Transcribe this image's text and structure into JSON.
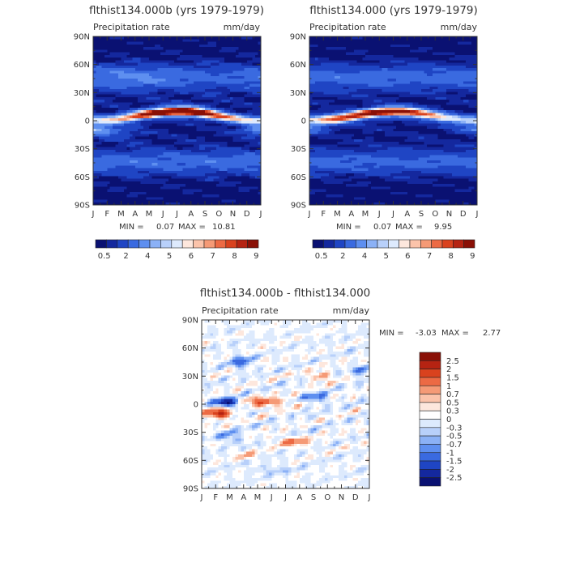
{
  "chart_data": [
    {
      "type": "heatmap",
      "title": "flthist134.000b (yrs 1979-1979)",
      "subtitle_left": "Precipitation rate",
      "subtitle_right": "mm/day",
      "x_ticks": [
        "J",
        "F",
        "M",
        "A",
        "M",
        "J",
        "J",
        "A",
        "S",
        "O",
        "N",
        "D",
        "J"
      ],
      "y_ticks": [
        "90N",
        "60N",
        "30N",
        "0",
        "30S",
        "60S",
        "90S"
      ],
      "y_tick_values": [
        90,
        60,
        30,
        0,
        -30,
        -60,
        -90
      ],
      "min_label": "MIN =",
      "min_value": "0.07",
      "max_label": "MAX =",
      "max_value": "10.81",
      "colorbar_labels": [
        "0.5",
        "2",
        "4",
        "5",
        "6",
        "7",
        "8",
        "9"
      ],
      "colorbar_colors": [
        "#0a1172",
        "#14289e",
        "#1f45c4",
        "#3a6ae0",
        "#5e8ff0",
        "#8bb1f6",
        "#b8d0fa",
        "#ddeafd",
        "#fde7dd",
        "#fbc3aa",
        "#f59a76",
        "#ec6a44",
        "#d9421e",
        "#b52312",
        "#8a1006"
      ],
      "peak_lat": 7,
      "peak_value": 10.8,
      "peak_month": 6
    },
    {
      "type": "heatmap",
      "title": "flthist134.000 (yrs 1979-1979)",
      "subtitle_left": "Precipitation rate",
      "subtitle_right": "mm/day",
      "x_ticks": [
        "J",
        "F",
        "M",
        "A",
        "M",
        "J",
        "J",
        "A",
        "S",
        "O",
        "N",
        "D",
        "J"
      ],
      "y_ticks": [
        "90N",
        "60N",
        "30N",
        "0",
        "30S",
        "60S",
        "90S"
      ],
      "y_tick_values": [
        90,
        60,
        30,
        0,
        -30,
        -60,
        -90
      ],
      "min_label": "MIN =",
      "min_value": "0.07",
      "max_label": "MAX =",
      "max_value": "9.95",
      "colorbar_labels": [
        "0.5",
        "2",
        "4",
        "5",
        "6",
        "7",
        "8",
        "9"
      ],
      "colorbar_colors": [
        "#0a1172",
        "#14289e",
        "#1f45c4",
        "#3a6ae0",
        "#5e8ff0",
        "#8bb1f6",
        "#b8d0fa",
        "#ddeafd",
        "#fde7dd",
        "#fbc3aa",
        "#f59a76",
        "#ec6a44",
        "#d9421e",
        "#b52312",
        "#8a1006"
      ],
      "peak_lat": 7,
      "peak_value": 9.9,
      "peak_month": 6
    },
    {
      "type": "heatmap",
      "title": "flthist134.000b - flthist134.000",
      "subtitle_left": "Precipitation rate",
      "subtitle_right": "mm/day",
      "x_ticks": [
        "J",
        "F",
        "M",
        "A",
        "M",
        "J",
        "J",
        "A",
        "S",
        "O",
        "N",
        "D",
        "J"
      ],
      "y_ticks": [
        "90N",
        "60N",
        "30N",
        "0",
        "30S",
        "60S",
        "90S"
      ],
      "y_tick_values": [
        90,
        60,
        30,
        0,
        -30,
        -60,
        -90
      ],
      "min_label": "MIN =",
      "min_value": "-3.03",
      "max_label": "MAX =",
      "max_value": "2.77",
      "colorbar_labels": [
        "2.5",
        "2",
        "1.5",
        "1",
        "0.7",
        "0.5",
        "0.3",
        "0",
        "-0.3",
        "-0.5",
        "-0.7",
        "-1",
        "-1.5",
        "-2",
        "-2.5"
      ],
      "colorbar_colors": [
        "#8a1006",
        "#b52312",
        "#d9421e",
        "#ec6a44",
        "#f59a76",
        "#fbc3aa",
        "#fde7dd",
        "#ffffff",
        "#ddeafd",
        "#b8d0fa",
        "#8bb1f6",
        "#5e8ff0",
        "#3a6ae0",
        "#1f45c4",
        "#14289e",
        "#0a1172"
      ]
    }
  ]
}
